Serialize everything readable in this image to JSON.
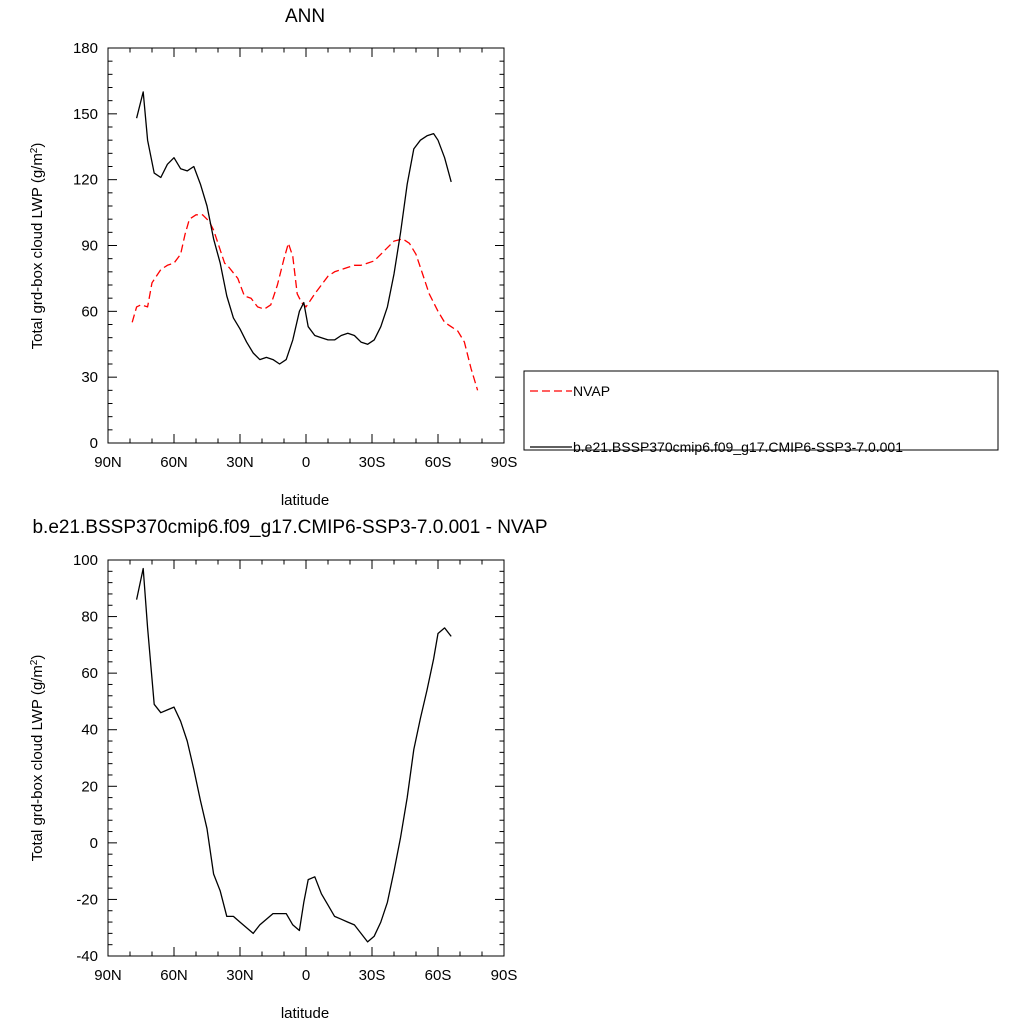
{
  "chart_data": [
    {
      "type": "line",
      "title": "ANN",
      "xlabel": "latitude",
      "ylabel": "Total grd-box cloud LWP (g/m²)",
      "xlim": [
        -90,
        90
      ],
      "ylim": [
        0,
        180
      ],
      "xticks": [
        -90,
        -60,
        -30,
        0,
        30,
        60,
        90
      ],
      "xtick_labels": [
        "90N",
        "60N",
        "30N",
        "0",
        "30S",
        "60S",
        "90S"
      ],
      "yticks": [
        0,
        30,
        60,
        90,
        120,
        150,
        180
      ],
      "ytick_labels": [
        "0",
        "30",
        "60",
        "90",
        "120",
        "150",
        "180"
      ],
      "grid": false,
      "legend_position": "right",
      "series": [
        {
          "name": "NVAP",
          "color": "#ff0000",
          "dash": "dashed",
          "x": [
            -79,
            -77,
            -75,
            -72,
            -70,
            -66,
            -63,
            -60,
            -57,
            -55,
            -53,
            -50,
            -47,
            -44,
            -42,
            -40,
            -37,
            -35,
            -31,
            -28,
            -25,
            -22,
            -19,
            -16,
            -13,
            -10,
            -8,
            -6,
            -4,
            -2,
            0,
            2,
            4,
            7,
            10,
            13,
            16,
            19,
            22,
            25,
            28,
            31,
            34,
            37,
            40,
            44,
            47,
            50,
            53,
            56,
            60,
            63,
            66,
            69,
            72,
            75,
            78
          ],
          "y": [
            55,
            62,
            63,
            62,
            73,
            79,
            81,
            82,
            86,
            95,
            102,
            104,
            104,
            101,
            97,
            91,
            82,
            80,
            75,
            67,
            66,
            62,
            61,
            63,
            72,
            84,
            91,
            85,
            68,
            64,
            62,
            65,
            68,
            72,
            76,
            78,
            79,
            80,
            81,
            81,
            82,
            83,
            86,
            89,
            92,
            93,
            91,
            86,
            77,
            68,
            60,
            55,
            53,
            51,
            46,
            34,
            24
          ]
        },
        {
          "name": "b.e21.BSSP370cmip6.f09_g17.CMIP6-SSP3-7.0.001",
          "color": "#000000",
          "dash": "solid",
          "x": [
            -77,
            -74,
            -72,
            -69,
            -66,
            -63,
            -60,
            -57,
            -54,
            -51,
            -48,
            -45,
            -42,
            -39,
            -36,
            -33,
            -30,
            -27,
            -24,
            -21,
            -18,
            -15,
            -12,
            -9,
            -6,
            -3,
            -1,
            1,
            4,
            7,
            10,
            13,
            16,
            19,
            22,
            25,
            28,
            31,
            34,
            37,
            40,
            43,
            46,
            49,
            52,
            55,
            58,
            60,
            63,
            66
          ],
          "y": [
            148,
            160,
            138,
            123,
            121,
            127,
            130,
            125,
            124,
            126,
            118,
            108,
            93,
            82,
            67,
            57,
            52,
            46,
            41,
            38,
            39,
            38,
            36,
            38,
            47,
            60,
            64,
            53,
            49,
            48,
            47,
            47,
            49,
            50,
            49,
            46,
            45,
            47,
            53,
            62,
            77,
            96,
            118,
            134,
            138,
            140,
            141,
            138,
            130,
            119
          ]
        }
      ]
    },
    {
      "type": "line",
      "title": "b.e21.BSSP370cmip6.f09_g17.CMIP6-SSP3-7.0.001 - NVAP",
      "xlabel": "latitude",
      "ylabel": "Total grd-box cloud LWP (g/m²)",
      "xlim": [
        -90,
        90
      ],
      "ylim": [
        -40,
        100
      ],
      "xticks": [
        -90,
        -60,
        -30,
        0,
        30,
        60,
        90
      ],
      "xtick_labels": [
        "90N",
        "60N",
        "30N",
        "0",
        "30S",
        "60S",
        "90S"
      ],
      "yticks": [
        -40,
        -20,
        0,
        20,
        40,
        60,
        80,
        100
      ],
      "ytick_labels": [
        "-40",
        "-20",
        "0",
        "20",
        "40",
        "60",
        "80",
        "100"
      ],
      "grid": false,
      "series": [
        {
          "color": "#000000",
          "dash": "solid",
          "x": [
            -77,
            -74,
            -72,
            -69,
            -66,
            -63,
            -60,
            -57,
            -54,
            -51,
            -48,
            -45,
            -42,
            -39,
            -36,
            -33,
            -30,
            -27,
            -24,
            -21,
            -18,
            -15,
            -12,
            -9,
            -6,
            -3,
            -1,
            1,
            4,
            7,
            10,
            13,
            16,
            19,
            22,
            25,
            28,
            31,
            34,
            37,
            40,
            43,
            46,
            49,
            52,
            55,
            58,
            60,
            63,
            66
          ],
          "y": [
            86,
            97,
            76,
            49,
            46,
            47,
            48,
            43,
            36,
            26,
            15,
            5,
            -11,
            -17,
            -26,
            -26,
            -28,
            -30,
            -32,
            -29,
            -27,
            -25,
            -25,
            -25,
            -29,
            -31,
            -21,
            -13,
            -12,
            -18,
            -22,
            -26,
            -27,
            -28,
            -29,
            -32,
            -35,
            -33,
            -28,
            -21,
            -10,
            2,
            16,
            33,
            44,
            54,
            65,
            74,
            76,
            73
          ]
        }
      ]
    }
  ]
}
